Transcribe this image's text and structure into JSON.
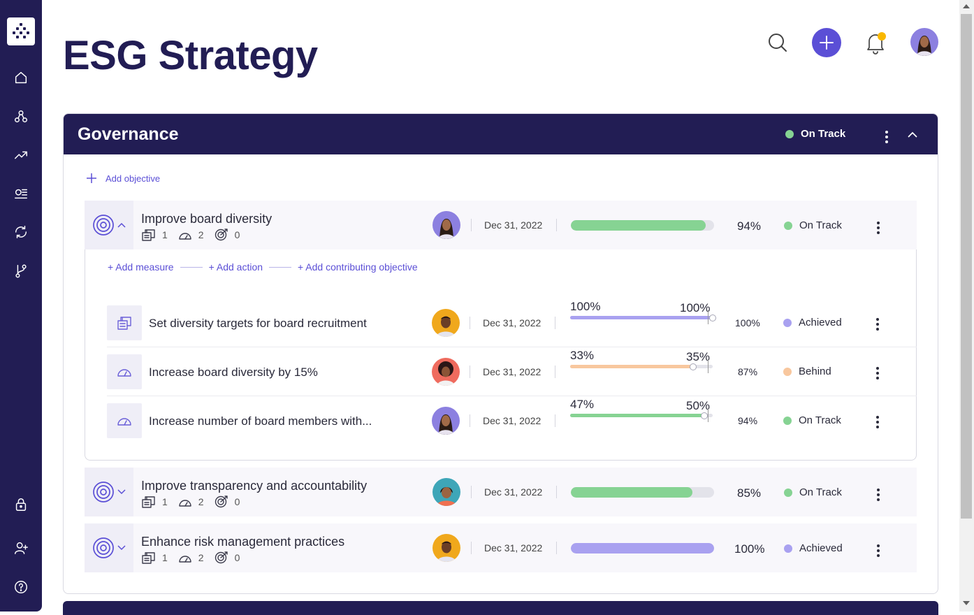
{
  "page": {
    "title": "ESG Strategy"
  },
  "sidebar": {
    "items": [
      {
        "name": "logo-icon"
      },
      {
        "name": "home-icon"
      },
      {
        "name": "strategy-icon"
      },
      {
        "name": "trend-icon"
      },
      {
        "name": "list-icon"
      },
      {
        "name": "sync-icon"
      },
      {
        "name": "branch-icon"
      },
      {
        "name": "lock-icon"
      },
      {
        "name": "add-user-icon"
      },
      {
        "name": "help-icon"
      }
    ]
  },
  "header": {
    "icons": [
      "search-icon",
      "add-icon",
      "bell-icon",
      "avatar"
    ]
  },
  "colors": {
    "navy": "#221d54",
    "accent": "#5b4fd6",
    "on_track": "#86d393",
    "achieved": "#a9a1f0",
    "behind": "#f8c79e",
    "notification": "#f9b800"
  },
  "section": {
    "title": "Governance",
    "status": "On Track",
    "add_objective": "Add objective",
    "objectives": [
      {
        "title": "Improve board diversity",
        "measures": "1",
        "actions": "2",
        "contributing": "0",
        "date": "Dec 31, 2022",
        "progress": 94,
        "pct": "94%",
        "status": "On Track"
      },
      {
        "title": "Improve transparency and accountability",
        "measures": "1",
        "actions": "2",
        "contributing": "0",
        "date": "Dec 31, 2022",
        "progress": 85,
        "pct": "85%",
        "status": "On Track"
      },
      {
        "title": "Enhance risk management practices",
        "measures": "1",
        "actions": "2",
        "contributing": "0",
        "date": "Dec 31, 2022",
        "progress": 100,
        "pct": "100%",
        "status": "Achieved"
      }
    ],
    "expanded": {
      "links": [
        "+ Add measure",
        "+ Add action",
        "+ Add contributing objective"
      ],
      "items": [
        {
          "title": "Set diversity targets for board recruitment",
          "date": "Dec 31, 2022",
          "actual": "100%",
          "target": "100%",
          "progress": 100,
          "pct": "100%",
          "status": "Achieved"
        },
        {
          "title": "Increase board diversity by 15%",
          "date": "Dec 31, 2022",
          "actual": "33%",
          "target": "35%",
          "progress": 87,
          "pct": "87%",
          "status": "Behind"
        },
        {
          "title": "Increase number of board members with...",
          "date": "Dec 31, 2022",
          "actual": "47%",
          "target": "50%",
          "progress": 94,
          "pct": "94%",
          "status": "On Track"
        }
      ]
    }
  }
}
